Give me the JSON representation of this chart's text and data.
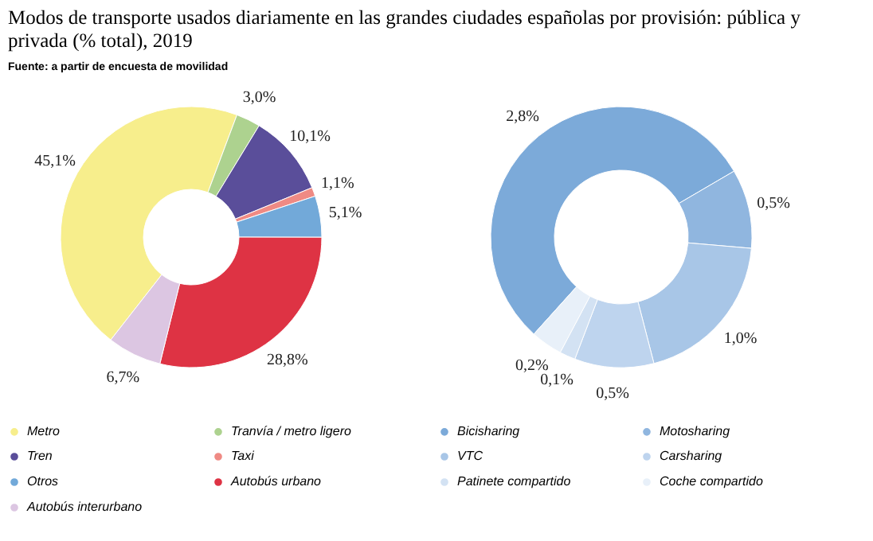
{
  "chart_data": [
    {
      "type": "donut",
      "title": [
        "Modos de transporte usados diariamente en las grandes ciudades españolas por provisión: pública y",
        "privada (% total), 2019"
      ],
      "annotations": [
        "Fuente: a partir de encuesta de movilidad"
      ],
      "legend": "bottom",
      "categories": [
        "Metro",
        "Tranvía / metro ligero",
        "Tren",
        "Taxi",
        "Otros",
        "Autobús urbano",
        "Autobús interurbano"
      ],
      "values": [
        45.1,
        3.0,
        10.1,
        1.1,
        5.1,
        28.8,
        6.7
      ],
      "colors": [
        "#f7ee8c",
        "#add28f",
        "#5a4e9a",
        "#ef8a84",
        "#72a9d9",
        "#de3344",
        "#dcc6e2"
      ],
      "value_labels": [
        "45,1%",
        "3,0%",
        "10,1%",
        "1,1%",
        "5,1%",
        "28,8%",
        "6,7%"
      ]
    },
    {
      "type": "donut",
      "legend": "bottom",
      "categories": [
        "Bicisharing",
        "Motosharing",
        "VTC",
        "Carsharing",
        "Patinete compartido",
        "Coche compartido"
      ],
      "values": [
        2.8,
        0.5,
        1.0,
        0.5,
        0.1,
        0.2
      ],
      "colors": [
        "#7caad9",
        "#90b6df",
        "#a8c6e7",
        "#bed4ee",
        "#d3e2f3",
        "#e8f0f9"
      ],
      "value_labels": [
        "2,8%",
        "0,5%",
        "1,0%",
        "0,5%",
        "0,1%",
        "0,2%"
      ]
    }
  ]
}
